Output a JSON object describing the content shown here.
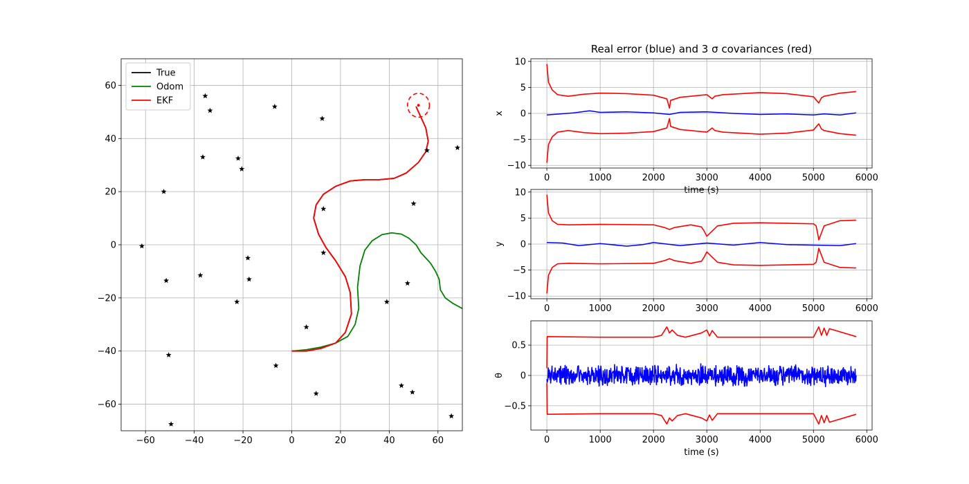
{
  "chart_data": [
    {
      "type": "line",
      "title": "",
      "xlabel": "",
      "ylabel": "",
      "xlim": [
        -70,
        70
      ],
      "ylim": [
        -70,
        70
      ],
      "xticks": [
        -60,
        -40,
        -20,
        0,
        20,
        40,
        60
      ],
      "yticks": [
        -60,
        -40,
        -20,
        0,
        20,
        40,
        60
      ],
      "grid": true,
      "legend_position": "top-left",
      "series": [
        {
          "name": "True",
          "color": "#000000",
          "x": [
            0,
            6,
            12,
            18,
            22,
            24.5,
            24,
            22,
            18,
            14,
            11,
            9,
            10,
            13,
            18,
            24,
            30,
            36,
            42,
            47,
            52,
            55,
            56,
            55,
            53,
            51
          ],
          "y": [
            -40,
            -40,
            -39,
            -37,
            -33,
            -26,
            -18,
            -12,
            -6,
            -1,
            4,
            10,
            15,
            19,
            22,
            24,
            24.5,
            24.5,
            25,
            27,
            31,
            35,
            39,
            44,
            48,
            52
          ]
        },
        {
          "name": "Odom",
          "color": "#008000",
          "x": [
            0,
            6,
            12,
            18,
            23,
            26,
            27.5,
            27,
            28,
            30,
            33,
            37,
            41,
            45,
            48,
            51,
            53,
            57,
            59,
            60.5,
            61,
            63,
            66,
            70
          ],
          "y": [
            -40,
            -39.5,
            -38.5,
            -37,
            -34.5,
            -30,
            -24,
            -16,
            -8,
            -2,
            1.5,
            3.8,
            4.5,
            4,
            2.5,
            0,
            -3,
            -7,
            -10,
            -13,
            -17,
            -20,
            -22,
            -24
          ]
        },
        {
          "name": "EKF",
          "color": "#ff0000",
          "x": [
            0,
            6,
            12,
            18,
            22,
            24.5,
            24,
            22,
            18,
            14,
            11,
            9,
            10,
            13,
            18,
            24,
            30,
            36,
            42,
            47,
            52,
            55,
            56,
            55,
            53,
            51
          ],
          "y": [
            -40,
            -40,
            -39,
            -37,
            -33,
            -26,
            -18,
            -12,
            -6,
            -1,
            4,
            10,
            15,
            19,
            22,
            24,
            24.5,
            24.5,
            25,
            27,
            31,
            35,
            39,
            44,
            48,
            52
          ]
        }
      ],
      "ellipse": {
        "color": "#ff0000",
        "center": [
          52,
          52.5
        ],
        "radii": [
          4.5,
          4.5
        ]
      },
      "landmarks": {
        "color": "#000000",
        "x": [
          -61.5,
          -52.5,
          -51.5,
          -50.5,
          -49.5,
          -37.5,
          -36.5,
          -35.5,
          -33.5,
          -22.5,
          -22,
          -20.5,
          -18,
          -17.5,
          -7,
          -6.5,
          6,
          10,
          12.5,
          13,
          13,
          39,
          45,
          47.5,
          49.5,
          50,
          55.5,
          65.5,
          68
        ],
        "y": [
          -0.5,
          20,
          -13.5,
          -41.5,
          -67.5,
          -11.5,
          33,
          56,
          50.5,
          -21.5,
          32.5,
          28.5,
          -5,
          -13,
          52,
          -45.5,
          -31,
          -56,
          47.5,
          -3,
          13.5,
          -21.5,
          -53,
          -14.5,
          -55.5,
          15.5,
          35.5,
          -64.5,
          36.5
        ]
      }
    },
    {
      "type": "line",
      "title": "Real error (blue) and 3 σ covariances (red)",
      "xlabel": "time (s)",
      "ylabel": "x",
      "xlim": [
        -300,
        6100
      ],
      "ylim": [
        -10.5,
        10.5
      ],
      "xticks": [
        0,
        1000,
        2000,
        3000,
        4000,
        5000,
        6000
      ],
      "yticks": [
        10,
        5,
        0,
        -5,
        -10
      ],
      "grid": true,
      "series": [
        {
          "name": "",
          "color": "#0000ff",
          "x": [
            0,
            500,
            800,
            1000,
            1500,
            2000,
            2300,
            2500,
            3000,
            3500,
            4000,
            4500,
            5000,
            5200,
            5500,
            5800
          ],
          "y": [
            -0.3,
            0.1,
            0.5,
            0.2,
            0.3,
            0.1,
            -0.2,
            0.2,
            0.3,
            0.0,
            -0.2,
            -0.1,
            -0.3,
            -0.1,
            -0.3,
            0.1
          ]
        },
        {
          "name": "",
          "color": "#ff0000",
          "x": [
            0,
            30,
            100,
            200,
            400,
            700,
            1000,
            1500,
            2000,
            2250,
            2300,
            2320,
            2500,
            3000,
            3100,
            3150,
            3300,
            4000,
            4500,
            5000,
            5100,
            5150,
            5200,
            5500,
            5800
          ],
          "y": [
            9.5,
            6.0,
            4.5,
            3.6,
            3.3,
            3.7,
            3.9,
            3.8,
            3.5,
            2.8,
            1.0,
            2.5,
            3.1,
            3.6,
            2.8,
            3.3,
            3.6,
            4.0,
            3.8,
            3.2,
            2.0,
            3.0,
            3.3,
            3.9,
            4.2
          ]
        },
        {
          "name": "",
          "color": "#ff0000",
          "x": [
            0,
            30,
            100,
            200,
            400,
            700,
            1000,
            1500,
            2000,
            2250,
            2300,
            2320,
            2500,
            3000,
            3100,
            3150,
            3300,
            4000,
            4500,
            5000,
            5100,
            5150,
            5200,
            5500,
            5800
          ],
          "y": [
            -9.5,
            -6.0,
            -4.5,
            -3.6,
            -3.3,
            -3.7,
            -3.9,
            -3.8,
            -3.5,
            -2.8,
            -1.0,
            -2.5,
            -3.1,
            -3.6,
            -2.8,
            -3.3,
            -3.6,
            -4.0,
            -3.8,
            -3.2,
            -2.0,
            -3.0,
            -3.3,
            -3.9,
            -4.2
          ]
        }
      ]
    },
    {
      "type": "line",
      "title": "",
      "xlabel": "",
      "ylabel": "y",
      "xlim": [
        -300,
        6100
      ],
      "ylim": [
        -10.5,
        10.5
      ],
      "xticks": [
        0,
        1000,
        2000,
        3000,
        4000,
        5000,
        6000
      ],
      "yticks": [
        10,
        5,
        0,
        -5,
        -10
      ],
      "grid": true,
      "series": [
        {
          "name": "",
          "color": "#0000ff",
          "x": [
            0,
            300,
            600,
            1000,
            1500,
            1800,
            2000,
            2500,
            3000,
            3500,
            4000,
            4500,
            5000,
            5500,
            5800
          ],
          "y": [
            0.3,
            0.2,
            -0.3,
            0.1,
            -0.4,
            -0.1,
            0.3,
            -0.3,
            0.2,
            -0.2,
            0.3,
            -0.1,
            -0.2,
            -0.3,
            0.1
          ]
        },
        {
          "name": "",
          "color": "#ff0000",
          "x": [
            0,
            30,
            100,
            200,
            400,
            1000,
            2000,
            2200,
            2300,
            2400,
            2700,
            2900,
            2950,
            3000,
            3200,
            3500,
            4000,
            4500,
            5000,
            5050,
            5080,
            5100,
            5200,
            5500,
            5800
          ],
          "y": [
            9.5,
            6.0,
            4.5,
            3.8,
            3.7,
            3.8,
            3.7,
            3.2,
            2.8,
            3.2,
            3.7,
            3.3,
            2.5,
            1.5,
            3.5,
            4.0,
            4.1,
            4.0,
            3.9,
            3.5,
            2.0,
            0.8,
            3.5,
            4.5,
            4.6
          ]
        },
        {
          "name": "",
          "color": "#ff0000",
          "x": [
            0,
            30,
            100,
            200,
            400,
            1000,
            2000,
            2200,
            2300,
            2400,
            2700,
            2900,
            2950,
            3000,
            3200,
            3500,
            4000,
            4500,
            5000,
            5050,
            5080,
            5100,
            5200,
            5500,
            5800
          ],
          "y": [
            -9.5,
            -6.0,
            -4.5,
            -3.8,
            -3.7,
            -3.8,
            -3.7,
            -3.2,
            -2.8,
            -3.2,
            -3.7,
            -3.3,
            -2.5,
            -1.5,
            -3.5,
            -4.0,
            -4.1,
            -4.0,
            -3.9,
            -3.5,
            -2.0,
            -0.8,
            -3.5,
            -4.5,
            -4.6
          ]
        }
      ]
    },
    {
      "type": "line",
      "title": "",
      "xlabel": "time (s)",
      "ylabel": "θ",
      "xlim": [
        -300,
        6100
      ],
      "ylim": [
        -0.9,
        0.9
      ],
      "xticks": [
        0,
        1000,
        2000,
        3000,
        4000,
        5000,
        6000
      ],
      "yticks": [
        0.5,
        0.0,
        -0.5
      ],
      "grid": true,
      "series": [
        {
          "name": "",
          "color": "#0000ff",
          "x": [
            0,
            5800
          ],
          "y": [
            0,
            0
          ],
          "noise_amplitude": 0.2
        },
        {
          "name": "",
          "color": "#ff0000",
          "x": [
            0,
            5,
            10,
            1000,
            2000,
            2150,
            2250,
            2300,
            2350,
            2450,
            2600,
            2900,
            3000,
            3050,
            3100,
            3200,
            4000,
            5000,
            5100,
            5150,
            5200,
            5250,
            5300,
            5800
          ],
          "y": [
            0.12,
            0.62,
            0.64,
            0.63,
            0.63,
            0.66,
            0.8,
            0.7,
            0.75,
            0.66,
            0.63,
            0.7,
            0.75,
            0.65,
            0.74,
            0.63,
            0.63,
            0.63,
            0.8,
            0.66,
            0.78,
            0.66,
            0.77,
            0.64
          ]
        },
        {
          "name": "",
          "color": "#ff0000",
          "x": [
            0,
            5,
            10,
            1000,
            2000,
            2150,
            2250,
            2300,
            2350,
            2450,
            2600,
            2900,
            3000,
            3050,
            3100,
            3200,
            4000,
            5000,
            5100,
            5150,
            5200,
            5250,
            5300,
            5800
          ],
          "y": [
            -0.12,
            -0.62,
            -0.64,
            -0.63,
            -0.63,
            -0.66,
            -0.8,
            -0.7,
            -0.75,
            -0.66,
            -0.63,
            -0.7,
            -0.75,
            -0.65,
            -0.74,
            -0.63,
            -0.63,
            -0.63,
            -0.8,
            -0.66,
            -0.78,
            -0.66,
            -0.77,
            -0.64
          ]
        }
      ]
    }
  ]
}
